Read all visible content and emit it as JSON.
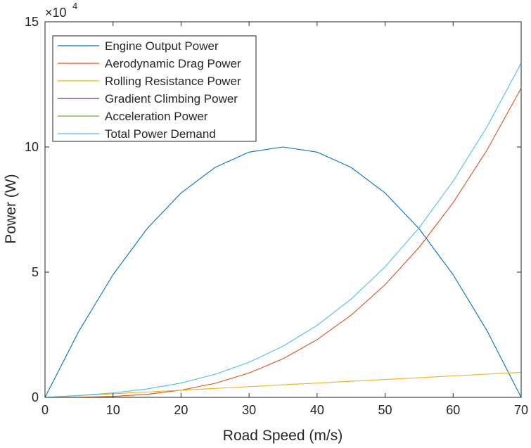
{
  "chart_data": {
    "type": "line",
    "title": "",
    "xlabel": "Road Speed (m/s)",
    "ylabel": "Power (W)",
    "xlim": [
      0,
      70
    ],
    "ylim": [
      0,
      150000
    ],
    "x_ticks": [
      0,
      10,
      20,
      30,
      40,
      50,
      60,
      70
    ],
    "x_tick_labels": [
      "0",
      "10",
      "20",
      "30",
      "40",
      "50",
      "60",
      "70"
    ],
    "y_ticks": [
      0,
      50000,
      100000,
      150000
    ],
    "y_tick_labels": [
      "0",
      "5",
      "10",
      "15"
    ],
    "y_exponent": {
      "base": "10",
      "power": "4"
    },
    "grid": false,
    "legend_position": "top-left",
    "x": [
      0,
      5,
      10,
      15,
      20,
      25,
      30,
      35,
      40,
      45,
      50,
      55,
      60,
      65,
      70
    ],
    "series": [
      {
        "name": "Engine Output Power",
        "color": "#0072BD",
        "values": [
          0,
          26531,
          48980,
          67347,
          81633,
          91837,
          97959,
          100000,
          97959,
          91837,
          81633,
          67347,
          48980,
          26531,
          0
        ]
      },
      {
        "name": "Aerodynamic Drag Power",
        "color": "#D95319",
        "values": [
          0,
          45,
          360,
          1215,
          2880,
          5625,
          9720,
          15435,
          23040,
          32805,
          45000,
          59895,
          77760,
          98865,
          123480
        ]
      },
      {
        "name": "Rolling Resistance Power",
        "color": "#EDB120",
        "values": [
          0,
          714,
          1429,
          2143,
          2857,
          3571,
          4286,
          5000,
          5714,
          6429,
          7143,
          7857,
          8571,
          9286,
          10000
        ]
      },
      {
        "name": "Gradient Climbing Power",
        "color": "#7E2F8E",
        "values": [
          0,
          0,
          0,
          0,
          0,
          0,
          0,
          0,
          0,
          0,
          0,
          0,
          0,
          0,
          0
        ]
      },
      {
        "name": "Acceleration Power",
        "color": "#77AC30",
        "values": [
          0,
          0,
          0,
          0,
          0,
          0,
          0,
          0,
          0,
          0,
          0,
          0,
          0,
          0,
          0
        ]
      },
      {
        "name": "Total Power Demand",
        "color": "#4DBEEE",
        "values": [
          0,
          759,
          1789,
          3358,
          5737,
          9196,
          14006,
          20435,
          28754,
          39234,
          52143,
          67752,
          86331,
          108151,
          133480
        ]
      }
    ]
  }
}
